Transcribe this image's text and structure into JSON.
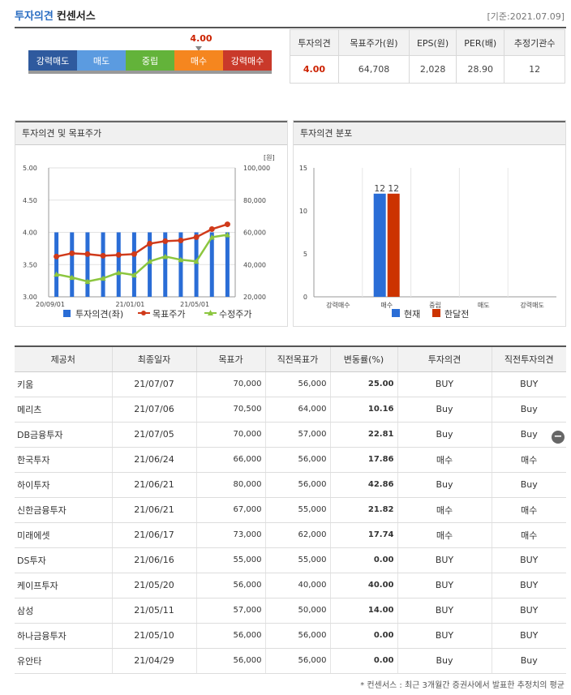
{
  "header": {
    "title_main": "투자의견",
    "title_sub": "컨센서스",
    "date": "[기준:2021.07.09]"
  },
  "opinion_bar": {
    "score": "4.00",
    "score_value": 4.0,
    "segments": [
      {
        "label": "강력매도",
        "color": "#2f5a9e"
      },
      {
        "label": "매도",
        "color": "#5b9be0"
      },
      {
        "label": "중립",
        "color": "#63b33a"
      },
      {
        "label": "매수",
        "color": "#f5861f"
      },
      {
        "label": "강력매수",
        "color": "#c9392a"
      }
    ]
  },
  "summary": {
    "headers": [
      "투자의견",
      "목표주가(원)",
      "EPS(원)",
      "PER(배)",
      "추정기관수"
    ],
    "values": [
      "4.00",
      "64,708",
      "2,028",
      "28.90",
      "12"
    ]
  },
  "chart1": {
    "title": "투자의견 및 목표주가"
  },
  "chart2": {
    "title": "투자의견 분포"
  },
  "chart_data": [
    {
      "type": "bar",
      "title": "투자의견 및 목표주가",
      "y_left_range": [
        3.0,
        5.0
      ],
      "y_left_ticks": [
        "5.00",
        "4.50",
        "4.00",
        "3.50",
        "3.00"
      ],
      "y_right_range": [
        20000,
        100000
      ],
      "y_right_ticks": [
        "100,000",
        "80,000",
        "60,000",
        "40,000",
        "20,000"
      ],
      "y_right_unit": "[원]",
      "x_tick_labels": [
        "20/09/01",
        "21/01/01",
        "21/05/01"
      ],
      "series": [
        {
          "name": "투자의견(좌)",
          "kind": "bar",
          "color": "#2a6dd6",
          "values": [
            4.0,
            4.0,
            4.0,
            4.0,
            4.0,
            4.0,
            4.0,
            4.0,
            4.0,
            4.0,
            4.0,
            4.0
          ]
        },
        {
          "name": "목표주가",
          "kind": "line",
          "color": "#d03a1a",
          "values": [
            45000,
            47000,
            46500,
            45500,
            46000,
            46500,
            53000,
            54500,
            55000,
            57000,
            62000,
            65000
          ]
        },
        {
          "name": "수정주가",
          "kind": "line",
          "color": "#8cc63f",
          "values": [
            34000,
            32000,
            29500,
            31500,
            35000,
            33500,
            42000,
            45000,
            43000,
            42000,
            57000,
            58500
          ]
        }
      ],
      "legend": "bottom"
    },
    {
      "type": "bar",
      "title": "투자의견 분포",
      "categories": [
        "강력매수",
        "매수",
        "중립",
        "매도",
        "강력매도"
      ],
      "y_range": [
        0,
        15
      ],
      "y_ticks": [
        "15",
        "10",
        "5",
        "0"
      ],
      "series": [
        {
          "name": "현재",
          "color": "#2a6dd6",
          "values": [
            0,
            12,
            0,
            0,
            0
          ]
        },
        {
          "name": "한달전",
          "color": "#cc3300",
          "values": [
            0,
            12,
            0,
            0,
            0
          ]
        }
      ],
      "data_labels": [
        "12",
        "12"
      ],
      "legend": "bottom"
    }
  ],
  "table": {
    "headers": [
      "제공처",
      "최종일자",
      "목표가",
      "직전목표가",
      "변동률(%)",
      "투자의견",
      "직전투자의견"
    ],
    "rows": [
      [
        "키움",
        "21/07/07",
        "70,000",
        "56,000",
        "25.00",
        "BUY",
        "BUY"
      ],
      [
        "메리츠",
        "21/07/06",
        "70,500",
        "64,000",
        "10.16",
        "Buy",
        "Buy"
      ],
      [
        "DB금융투자",
        "21/07/05",
        "70,000",
        "57,000",
        "22.81",
        "Buy",
        "Buy"
      ],
      [
        "한국투자",
        "21/06/24",
        "66,000",
        "56,000",
        "17.86",
        "매수",
        "매수"
      ],
      [
        "하이투자",
        "21/06/21",
        "80,000",
        "56,000",
        "42.86",
        "Buy",
        "Buy"
      ],
      [
        "신한금융투자",
        "21/06/21",
        "67,000",
        "55,000",
        "21.82",
        "매수",
        "매수"
      ],
      [
        "미래에셋",
        "21/06/17",
        "73,000",
        "62,000",
        "17.74",
        "매수",
        "매수"
      ],
      [
        "DS투자",
        "21/06/16",
        "55,000",
        "55,000",
        "0.00",
        "BUY",
        "BUY"
      ],
      [
        "케이프투자",
        "21/05/20",
        "56,000",
        "40,000",
        "40.00",
        "BUY",
        "BUY"
      ],
      [
        "삼성",
        "21/05/11",
        "57,000",
        "50,000",
        "14.00",
        "BUY",
        "BUY"
      ],
      [
        "하나금융투자",
        "21/05/10",
        "56,000",
        "56,000",
        "0.00",
        "BUY",
        "BUY"
      ],
      [
        "유안타",
        "21/04/29",
        "56,000",
        "56,000",
        "0.00",
        "Buy",
        "Buy"
      ]
    ],
    "collapse_icon": "minus-circle-icon"
  },
  "footnote": "* 컨센서스 : 최근 3개월간 증권사에서 발표한 추정치의 평균"
}
